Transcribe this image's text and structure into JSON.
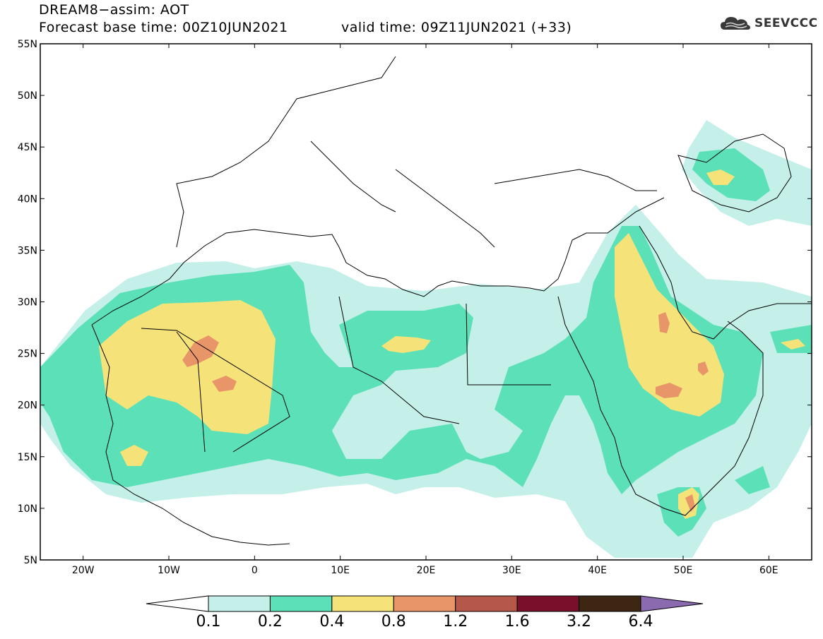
{
  "header": {
    "line1": "DREAM8−assim: AOT",
    "line2": "Forecast base time: 00Z10JUN2021",
    "valid": "valid time: 09Z11JUN2021 (+33)",
    "logo_text": "SEEVCCC"
  },
  "map": {
    "lon_range": [
      -25,
      65
    ],
    "lat_range": [
      5,
      55
    ],
    "lat_ticks": [
      "55N",
      "50N",
      "45N",
      "40N",
      "35N",
      "30N",
      "25N",
      "20N",
      "15N",
      "10N",
      "5N"
    ],
    "lon_ticks": [
      "20W",
      "10W",
      "0",
      "10E",
      "20E",
      "30E",
      "40E",
      "50E",
      "60E"
    ]
  },
  "colorbar": {
    "levels": [
      "0.1",
      "0.2",
      "0.4",
      "0.8",
      "1.2",
      "1.6",
      "3.2",
      "6.4"
    ],
    "colors": [
      "#ffffff",
      "#c5f0ea",
      "#5ce0b8",
      "#f5e37a",
      "#e8956a",
      "#b5584a",
      "#7a0f2a",
      "#3d2612",
      "#8b6ab0"
    ]
  }
}
